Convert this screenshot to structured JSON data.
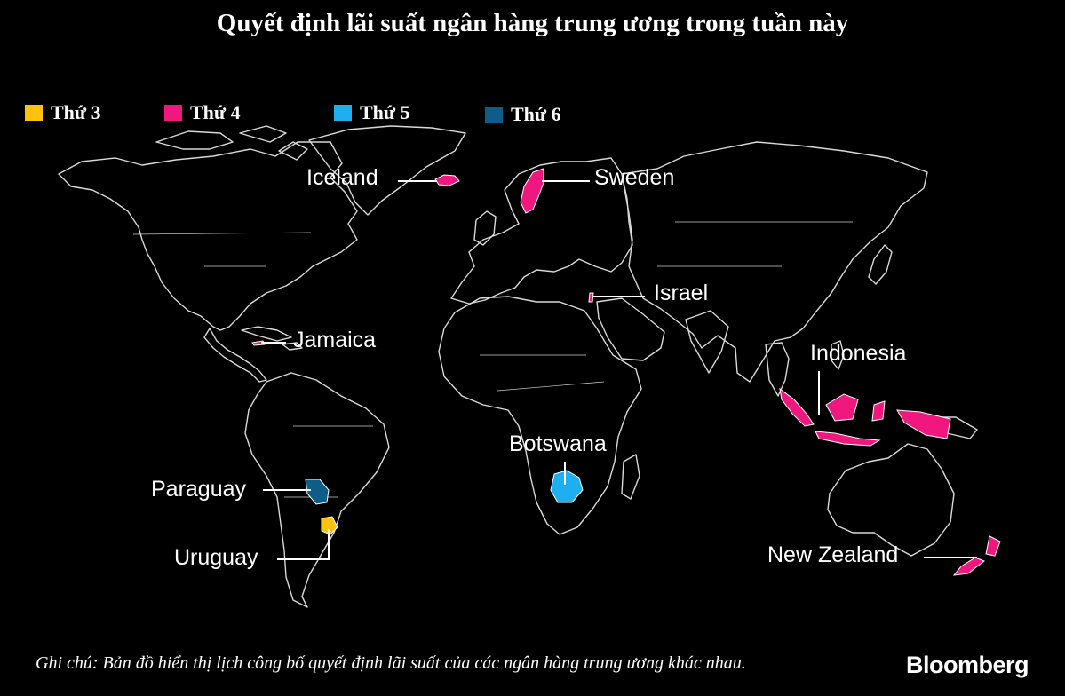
{
  "title": "Quyết định lãi suất ngân hàng trung ương trong tuần này",
  "legend": [
    {
      "label": "Thứ 3",
      "color": "#FFC20E"
    },
    {
      "label": "Thứ 4",
      "color": "#F0187F"
    },
    {
      "label": "Thứ 5",
      "color": "#1FAEF0"
    },
    {
      "label": "Thứ 6",
      "color": "#0E5C88"
    }
  ],
  "countries": {
    "iceland": {
      "label": "Iceland",
      "day": "Thứ 4"
    },
    "sweden": {
      "label": "Sweden",
      "day": "Thứ 4"
    },
    "israel": {
      "label": "Israel",
      "day": "Thứ 4"
    },
    "jamaica": {
      "label": "Jamaica",
      "day": "Thứ 4"
    },
    "indonesia": {
      "label": "Indonesia",
      "day": "Thứ 4"
    },
    "botswana": {
      "label": "Botswana",
      "day": "Thứ 5"
    },
    "paraguay": {
      "label": "Paraguay",
      "day": "Thứ 6"
    },
    "uruguay": {
      "label": "Uruguay",
      "day": "Thứ 3"
    },
    "new_zealand": {
      "label": "New Zealand",
      "day": "Thứ 4"
    }
  },
  "note": "Ghi chú: Bản đồ hiển thị lịch công bố quyết định lãi suất của các ngân hàng trung ương khác nhau.",
  "source_logo": "Bloomberg"
}
